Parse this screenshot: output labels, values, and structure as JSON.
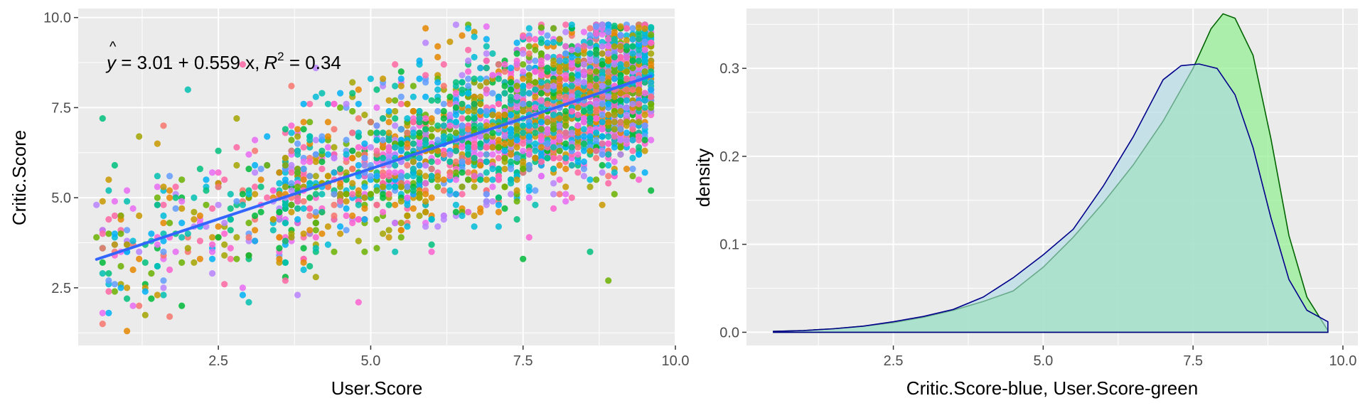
{
  "chart_data": [
    {
      "type": "scatter",
      "xlabel": "User.Score",
      "ylabel": "Critic.Score",
      "xlim": [
        0.2,
        10.0
      ],
      "ylim": [
        0.9,
        10.25
      ],
      "xticks": [
        "2.5",
        "5.0",
        "7.5",
        "10.0"
      ],
      "yticks": [
        "2.5",
        "5.0",
        "7.5",
        "10.0"
      ],
      "grid": true,
      "background": "#ebebeb",
      "annotation": {
        "yhat": "y",
        "eq_rest": " = 3.01 + 0.559 x,",
        "r2_letter": "R",
        "r2_exp": "2",
        "r2_value": " = 0.34"
      },
      "regression": {
        "intercept": 3.01,
        "slope": 0.559,
        "x_range": [
          0.5,
          9.6
        ],
        "color": "#3366ff"
      },
      "point_palette": [
        "#f8766d",
        "#e58700",
        "#c99800",
        "#a3a500",
        "#6bb100",
        "#00ba38",
        "#00bf7d",
        "#00c0af",
        "#00bcd8",
        "#00b0f6",
        "#619cff",
        "#b983ff",
        "#e76bf3",
        "#fd61d1",
        "#ff67a4"
      ],
      "points_sample": [
        [
          0.6,
          7.2
        ],
        [
          1.0,
          1.3
        ],
        [
          0.5,
          3.9
        ],
        [
          1.7,
          1.7
        ],
        [
          2.0,
          8.0
        ],
        [
          2.9,
          2.3
        ],
        [
          4.8,
          2.1
        ],
        [
          8.9,
          2.7
        ],
        [
          8.6,
          3.5
        ],
        [
          7.5,
          3.3
        ],
        [
          1.6,
          7.0
        ],
        [
          2.9,
          8.7
        ],
        [
          5.9,
          9.3
        ],
        [
          6.4,
          9.8
        ],
        [
          8.8,
          9.8
        ],
        [
          9.2,
          9.2
        ]
      ]
    },
    {
      "type": "area",
      "xlabel": "Critic.Score-blue, User.Score-green",
      "ylabel": "density",
      "xlim": [
        0.05,
        10.25
      ],
      "ylim": [
        -0.015,
        0.368
      ],
      "xticks": [
        "2.5",
        "5.0",
        "7.5",
        "10.0"
      ],
      "yticks": [
        "0.0",
        "0.1",
        "0.2",
        "0.3"
      ],
      "grid": true,
      "background": "#ebebeb",
      "series": [
        {
          "fill": "#add8e6",
          "stroke": "#00008b",
          "x": [
            0.5,
            1.0,
            1.5,
            2.0,
            2.5,
            3.0,
            3.5,
            4.0,
            4.5,
            5.0,
            5.5,
            6.0,
            6.5,
            7.0,
            7.3,
            7.6,
            7.9,
            8.2,
            8.5,
            8.8,
            9.1,
            9.4,
            9.75
          ],
          "y": [
            0.001,
            0.002,
            0.004,
            0.007,
            0.012,
            0.018,
            0.026,
            0.04,
            0.062,
            0.088,
            0.117,
            0.166,
            0.222,
            0.287,
            0.303,
            0.305,
            0.3,
            0.27,
            0.21,
            0.13,
            0.06,
            0.025,
            0.012
          ]
        },
        {
          "fill": "#90ee90",
          "stroke": "#006400",
          "x": [
            0.5,
            1.0,
            1.5,
            2.0,
            2.5,
            3.0,
            3.5,
            4.0,
            4.5,
            5.0,
            5.5,
            6.0,
            6.5,
            7.0,
            7.5,
            7.8,
            8.0,
            8.2,
            8.5,
            8.8,
            9.1,
            9.4,
            9.75
          ],
          "y": [
            0.001,
            0.002,
            0.004,
            0.007,
            0.011,
            0.017,
            0.025,
            0.035,
            0.047,
            0.074,
            0.108,
            0.147,
            0.19,
            0.24,
            0.3,
            0.345,
            0.362,
            0.357,
            0.315,
            0.22,
            0.11,
            0.04,
            0.002
          ]
        }
      ]
    }
  ]
}
